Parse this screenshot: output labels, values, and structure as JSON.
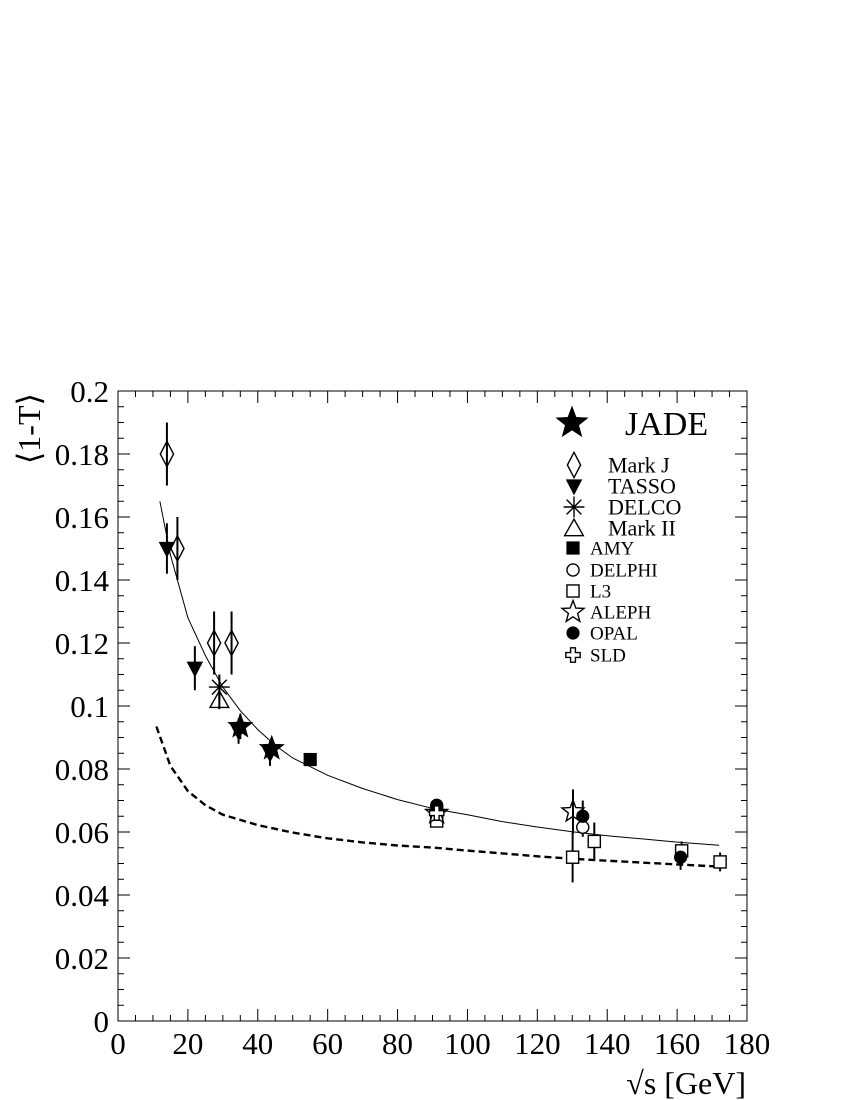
{
  "chart_data": {
    "type": "scatter",
    "title": "",
    "xlabel": "√s [GeV]",
    "ylabel": "⟨1-T⟩",
    "xlim": [
      0,
      180
    ],
    "ylim": [
      0,
      0.2
    ],
    "x_ticks": [
      "0",
      "20",
      "40",
      "60",
      "80",
      "100",
      "120",
      "140",
      "160",
      "180"
    ],
    "y_ticks": [
      "0",
      "0.02",
      "0.04",
      "0.06",
      "0.08",
      "0.1",
      "0.12",
      "0.14",
      "0.16",
      "0.18",
      "0.2"
    ],
    "grid": false,
    "legend_position": "top-right",
    "series": [
      {
        "name": "JADE",
        "marker": "star-filled",
        "points": [
          {
            "x": 35,
            "y": 0.0935,
            "err": 0.004
          },
          {
            "x": 44,
            "y": 0.0865,
            "err": 0.003
          }
        ]
      },
      {
        "name": "Mark J",
        "marker": "diamond-open",
        "points": [
          {
            "x": 14,
            "y": 0.18,
            "err": 0.01
          },
          {
            "x": 17,
            "y": 0.15,
            "err": 0.01
          },
          {
            "x": 27.5,
            "y": 0.12,
            "err": 0.01
          },
          {
            "x": 32.5,
            "y": 0.12,
            "err": 0.01
          }
        ]
      },
      {
        "name": "TASSO",
        "marker": "triangle-down-filled",
        "points": [
          {
            "x": 14,
            "y": 0.15,
            "err": 0.008
          },
          {
            "x": 22,
            "y": 0.112,
            "err": 0.007
          },
          {
            "x": 34.5,
            "y": 0.092,
            "err": 0.004
          },
          {
            "x": 43.5,
            "y": 0.085,
            "err": 0.004
          }
        ]
      },
      {
        "name": "DELCO",
        "marker": "asterisk",
        "points": [
          {
            "x": 29,
            "y": 0.106,
            "err": 0.004
          }
        ]
      },
      {
        "name": "Mark II",
        "marker": "triangle-up-open",
        "points": [
          {
            "x": 29,
            "y": 0.102,
            "err": 0.003
          }
        ]
      },
      {
        "name": "AMY",
        "marker": "square-filled",
        "points": [
          {
            "x": 55,
            "y": 0.083,
            "err": 0.0015
          }
        ]
      },
      {
        "name": "DELPHI",
        "marker": "circle-open",
        "points": [
          {
            "x": 91.2,
            "y": 0.068,
            "err": 0.001
          },
          {
            "x": 133,
            "y": 0.0615,
            "err": 0.003
          }
        ]
      },
      {
        "name": "L3",
        "marker": "square-open",
        "points": [
          {
            "x": 91.2,
            "y": 0.0635,
            "err": 0.002
          },
          {
            "x": 130.1,
            "y": 0.052,
            "err": 0.008
          },
          {
            "x": 136.3,
            "y": 0.057,
            "err": 0.006
          },
          {
            "x": 161.3,
            "y": 0.054,
            "err": 0.003
          },
          {
            "x": 172.3,
            "y": 0.0505,
            "err": 0.003
          }
        ]
      },
      {
        "name": "ALEPH",
        "marker": "star-open",
        "points": [
          {
            "x": 91.2,
            "y": 0.066,
            "err": 0.001
          },
          {
            "x": 130.2,
            "y": 0.0665,
            "err": 0.007
          }
        ]
      },
      {
        "name": "OPAL",
        "marker": "circle-filled",
        "points": [
          {
            "x": 91.2,
            "y": 0.0685,
            "err": 0.001
          },
          {
            "x": 133,
            "y": 0.065,
            "err": 0.005
          },
          {
            "x": 161,
            "y": 0.052,
            "err": 0.004
          }
        ]
      },
      {
        "name": "SLD",
        "marker": "cross-open",
        "points": [
          {
            "x": 91.2,
            "y": 0.066,
            "err": 0.001
          }
        ]
      }
    ],
    "curves": [
      {
        "style": "solid",
        "points": [
          [
            12,
            0.165
          ],
          [
            15,
            0.148
          ],
          [
            20,
            0.128
          ],
          [
            25,
            0.116
          ],
          [
            30,
            0.106
          ],
          [
            35,
            0.0985
          ],
          [
            40,
            0.0925
          ],
          [
            45,
            0.0875
          ],
          [
            50,
            0.0835
          ],
          [
            60,
            0.078
          ],
          [
            70,
            0.0738
          ],
          [
            80,
            0.0703
          ],
          [
            91,
            0.0672
          ],
          [
            100,
            0.0655
          ],
          [
            110,
            0.0633
          ],
          [
            120,
            0.0616
          ],
          [
            130,
            0.0601
          ],
          [
            140,
            0.0588
          ],
          [
            150,
            0.0578
          ],
          [
            160,
            0.0568
          ],
          [
            172,
            0.0558
          ]
        ]
      },
      {
        "style": "dashed",
        "points": [
          [
            11,
            0.0935
          ],
          [
            15,
            0.081
          ],
          [
            20,
            0.073
          ],
          [
            25,
            0.0685
          ],
          [
            30,
            0.0655
          ],
          [
            40,
            0.0622
          ],
          [
            50,
            0.0598
          ],
          [
            60,
            0.058
          ],
          [
            70,
            0.0567
          ],
          [
            80,
            0.0557
          ],
          [
            91,
            0.055
          ],
          [
            100,
            0.0541
          ],
          [
            110,
            0.0532
          ],
          [
            120,
            0.0523
          ],
          [
            130,
            0.0515
          ],
          [
            140,
            0.0509
          ],
          [
            150,
            0.0503
          ],
          [
            160,
            0.0497
          ],
          [
            172,
            0.049
          ]
        ]
      }
    ]
  }
}
